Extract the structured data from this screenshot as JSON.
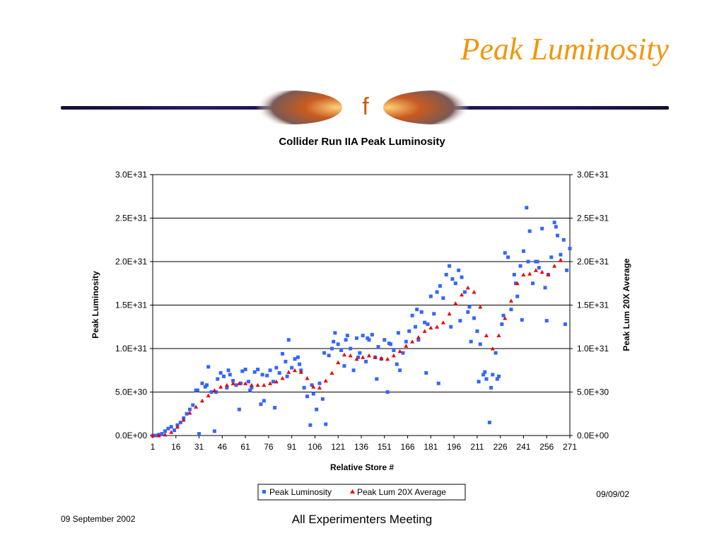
{
  "slide": {
    "title": "Peak Luminosity",
    "divider_glyph": "f",
    "footer_date": "09 September 2002",
    "footer_center": "All Experimenters Meeting"
  },
  "colors": {
    "title": "#f2960c",
    "series_points": "#3366ff",
    "series_average": "#ee0000",
    "divider_gradient_start": "#1a1a66",
    "divider_gradient_mid": "#cc3300",
    "divider_gradient_end": "#ffcc66"
  },
  "chart_data": {
    "type": "scatter",
    "title": "Collider Run IIA Peak Luminosity",
    "xlabel": "Relative Store #",
    "ylabel": "Peak Luminosity",
    "y2label": "Peak Lum 20X Average",
    "date_stamp": "09/09/02",
    "xlim": [
      1,
      271
    ],
    "ylim": [
      0,
      3e+31
    ],
    "x_tick_labels": [
      "1",
      "16",
      "31",
      "46",
      "61",
      "76",
      "91",
      "106",
      "121",
      "136",
      "151",
      "166",
      "181",
      "196",
      "211",
      "226",
      "241",
      "256",
      "271"
    ],
    "y_tick_labels": [
      "0.0E+00",
      "5.0E+30",
      "1.0E+31",
      "1.5E+31",
      "2.0E+31",
      "2.5E+31",
      "3.0E+31"
    ],
    "y_tick_values": [
      0,
      5e+30,
      1e+31,
      1.5e+31,
      2e+31,
      2.5e+31,
      3e+31
    ],
    "grid": true,
    "legend_position": "bottom-center",
    "series": [
      {
        "name": "Peak Luminosity",
        "marker": "square",
        "x": [
          1,
          3,
          5,
          7,
          9,
          11,
          13,
          15,
          17,
          19,
          21,
          23,
          25,
          27,
          29,
          31,
          33,
          35,
          37,
          39,
          41,
          43,
          45,
          47,
          49,
          51,
          53,
          55,
          57,
          59,
          61,
          63,
          65,
          67,
          69,
          71,
          73,
          75,
          77,
          79,
          81,
          83,
          85,
          87,
          89,
          91,
          93,
          95,
          97,
          99,
          101,
          103,
          105,
          107,
          109,
          111,
          113,
          115,
          117,
          119,
          121,
          123,
          125,
          127,
          129,
          131,
          133,
          135,
          137,
          139,
          141,
          143,
          145,
          147,
          149,
          151,
          153,
          155,
          157,
          159,
          161,
          163,
          165,
          167,
          169,
          171,
          173,
          175,
          177,
          179,
          181,
          183,
          185,
          187,
          189,
          191,
          193,
          195,
          197,
          199,
          201,
          203,
          205,
          207,
          209,
          211,
          213,
          215,
          217,
          219,
          221,
          223,
          225,
          227,
          229,
          231,
          233,
          235,
          237,
          239,
          241,
          243,
          245,
          247,
          249,
          251,
          253,
          255,
          257,
          259,
          261,
          263,
          265,
          267,
          269,
          271,
          30,
          36,
          42,
          50,
          58,
          64,
          72,
          80,
          88,
          96,
          104,
          112,
          118,
          126,
          134,
          140,
          146,
          154,
          160,
          172,
          178,
          186,
          194,
          200,
          206,
          212,
          216,
          220,
          224,
          228,
          236,
          240,
          244,
          250,
          256,
          262,
          268
        ],
        "y": [
          0.0,
          0.0,
          1e+29,
          2e+29,
          5e+29,
          8e+29,
          1e+30,
          6e+29,
          1.2e+30,
          1.5e+30,
          2e+30,
          2.5e+30,
          3e+30,
          3.5e+30,
          5.2e+30,
          2e+29,
          6e+30,
          5.6e+30,
          7.9e+30,
          5e+30,
          5e+29,
          6.5e+30,
          7.2e+30,
          6.8e+30,
          5.5e+30,
          7e+30,
          6.3e+30,
          5.8e+30,
          3e+30,
          7.4e+30,
          7.6e+30,
          6.2e+30,
          5.5e+30,
          7.3e+30,
          7.6e+30,
          3.6e+30,
          4e+30,
          6.9e+30,
          7.5e+30,
          6.2e+30,
          7.8e+30,
          7.2e+30,
          9.4e+30,
          8.5e+30,
          1.1e+31,
          7.8e+30,
          8.8e+30,
          9e+30,
          7.5e+30,
          5.5e+30,
          4.5e+30,
          1.2e+30,
          4.8e+30,
          3e+30,
          6e+30,
          4.2e+30,
          1.3e+30,
          9.2e+30,
          1e+31,
          1.18e+31,
          1.05e+31,
          9.8e+30,
          8e+30,
          1.15e+31,
          1e+31,
          7.5e+30,
          1.12e+31,
          9.5e+30,
          1.15e+31,
          8.5e+30,
          1.1e+31,
          1.16e+31,
          9e+30,
          1.02e+31,
          8.8e+30,
          1.1e+31,
          5e+30,
          1.05e+31,
          9.8e+30,
          8.2e+30,
          7.5e+30,
          9.5e+30,
          1.08e+31,
          1.2e+31,
          1.38e+31,
          1.25e+31,
          1.1e+31,
          1.42e+31,
          1.3e+31,
          1.28e+31,
          1.6e+31,
          1.4e+31,
          1.65e+31,
          1.72e+31,
          1.58e+31,
          1.85e+31,
          1.95e+31,
          1.8e+31,
          1.75e+31,
          1.9e+31,
          1.82e+31,
          1.65e+31,
          1.42e+31,
          1.08e+31,
          1.35e+31,
          1.2e+31,
          1.05e+31,
          7e+30,
          6.5e+30,
          1.5e+30,
          7e+30,
          9.5e+30,
          6.8e+30,
          1.28e+31,
          2.1e+31,
          2.05e+31,
          1.45e+31,
          1.85e+31,
          1.6e+31,
          1.95e+31,
          2.12e+31,
          2.62e+31,
          2.35e+31,
          1.75e+31,
          2e+31,
          1.93e+31,
          2.38e+31,
          1.7e+31,
          1.85e+31,
          2.05e+31,
          2.45e+31,
          2.3e+31,
          2.08e+31,
          2.25e+31,
          1.9e+31,
          2.15e+31,
          5.2e+30,
          5.8e+30,
          5e+30,
          7.5e+30,
          6e+30,
          5.2e+30,
          7e+30,
          3.2e+30,
          6.8e+30,
          8.2e+30,
          5.8e+30,
          9.5e+30,
          1.08e+31,
          1.1e+31,
          9e+30,
          1.12e+31,
          6.5e+30,
          1.06e+31,
          1.18e+31,
          1.45e+31,
          7.2e+30,
          6e+30,
          1.25e+31,
          1.32e+31,
          1.48e+31,
          6.2e+30,
          7.3e+30,
          5.5e+30,
          6.5e+30,
          1.38e+31,
          1.75e+31,
          1.33e+31,
          2e+31,
          2e+31,
          1.32e+31,
          2.4e+31,
          1.28e+31
        ]
      },
      {
        "name": "Peak Lum 20X Average",
        "marker": "triangle",
        "x": [
          1,
          5,
          9,
          13,
          17,
          21,
          25,
          29,
          33,
          37,
          41,
          45,
          49,
          53,
          57,
          61,
          65,
          69,
          73,
          77,
          81,
          85,
          89,
          93,
          97,
          101,
          105,
          109,
          113,
          117,
          121,
          125,
          129,
          133,
          137,
          141,
          145,
          149,
          153,
          157,
          161,
          165,
          169,
          173,
          177,
          181,
          185,
          189,
          193,
          197,
          201,
          205,
          209,
          213,
          217,
          221,
          225,
          229,
          233,
          237,
          241,
          245,
          249,
          253,
          257,
          261,
          265
        ],
        "y": [
          0.0,
          0.0,
          1e+29,
          4e+29,
          1e+30,
          1.8e+30,
          2.6e+30,
          3.3e+30,
          4e+30,
          4.6e+30,
          5.2e+30,
          5.6e+30,
          5.8e+30,
          6e+30,
          6e+30,
          6e+30,
          5.8e+30,
          5.8e+30,
          5.8e+30,
          6e+30,
          6.2e+30,
          6.6e+30,
          7.3e+30,
          7.5e+30,
          7.3e+30,
          6.6e+30,
          5.6e+30,
          5.5e+30,
          6.3e+30,
          7.2e+30,
          8.4e+30,
          9.3e+30,
          9.2e+30,
          8.8e+30,
          9e+30,
          9.2e+30,
          9e+30,
          8.9e+30,
          8.8e+30,
          9.2e+30,
          9.7e+30,
          1.03e+31,
          1.08e+31,
          1.13e+31,
          1.2e+31,
          1.24e+31,
          1.25e+31,
          1.3e+31,
          1.4e+31,
          1.52e+31,
          1.62e+31,
          1.7e+31,
          1.65e+31,
          1.48e+31,
          1.15e+31,
          1e+31,
          1.15e+31,
          1.35e+31,
          1.55e+31,
          1.75e+31,
          1.85e+31,
          1.86e+31,
          1.9e+31,
          1.88e+31,
          1.85e+31,
          1.95e+31,
          2.02e+31
        ]
      }
    ]
  }
}
